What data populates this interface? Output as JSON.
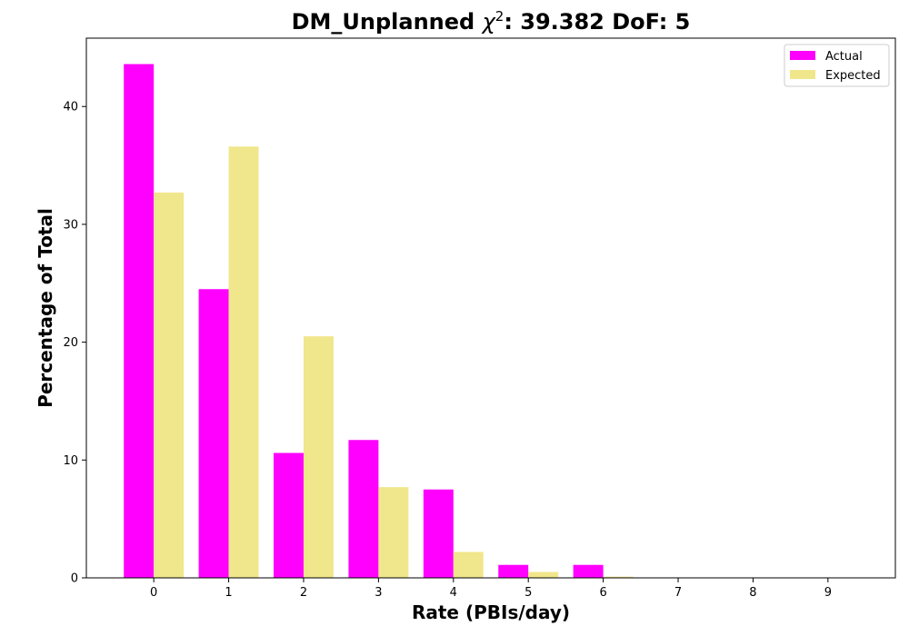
{
  "chart_data": {
    "type": "bar",
    "title_prefix": "DM_Unplanned ",
    "title_chi": "χ",
    "title_sup": "2",
    "title_suffix": ": 39.382 DoF: 5",
    "xlabel": "Rate (PBIs/day)",
    "ylabel": "Percentage of Total",
    "categories": [
      "0",
      "1",
      "2",
      "3",
      "4",
      "5",
      "6",
      "7",
      "8",
      "9"
    ],
    "yticks": [
      0,
      10,
      20,
      30,
      40
    ],
    "ylim": [
      0,
      45.8
    ],
    "xlim": [
      -0.9,
      9.9
    ],
    "grid": false,
    "legend_position": "top-right",
    "series": [
      {
        "name": "Actual",
        "color": "#ff00ff",
        "values": [
          43.6,
          24.5,
          10.6,
          11.7,
          7.5,
          1.1,
          1.1,
          0,
          0,
          0
        ]
      },
      {
        "name": "Expected",
        "color": "#f0e68c",
        "values": [
          32.7,
          36.6,
          20.5,
          7.7,
          2.2,
          0.5,
          0.1,
          0,
          0,
          0
        ]
      }
    ]
  }
}
